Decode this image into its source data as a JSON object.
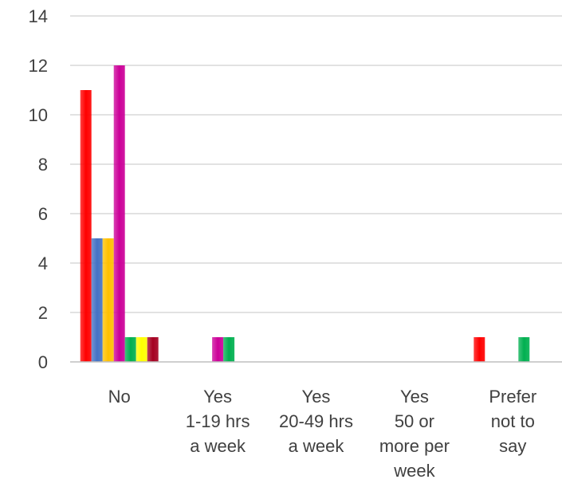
{
  "chart_data": {
    "type": "bar",
    "categories": [
      [
        "No"
      ],
      [
        "Yes",
        "1-19 hrs",
        "a week"
      ],
      [
        "Yes",
        "20-49 hrs",
        "a week"
      ],
      [
        "Yes",
        "50 or",
        "more per",
        "week"
      ],
      [
        "Prefer",
        "not to",
        "say"
      ]
    ],
    "ylim": [
      0,
      14
    ],
    "yticks": [
      0,
      2,
      4,
      6,
      8,
      10,
      12,
      14
    ],
    "grid": true,
    "legend": "none",
    "series": [
      {
        "color": "#ff0000",
        "values": [
          11,
          0,
          0,
          0,
          1
        ]
      },
      {
        "color": "#4472c4",
        "values": [
          5,
          0,
          0,
          0,
          0
        ]
      },
      {
        "color": "#ffc000",
        "values": [
          5,
          0,
          0,
          0,
          0
        ]
      },
      {
        "color": "#cc0099",
        "values": [
          12,
          1,
          0,
          0,
          0
        ]
      },
      {
        "color": "#00b050",
        "values": [
          1,
          1,
          0,
          0,
          1
        ]
      },
      {
        "color": "#ffff00",
        "values": [
          1,
          0,
          0,
          0,
          0
        ]
      },
      {
        "color": "#a50021",
        "values": [
          1,
          0,
          0,
          0,
          0
        ]
      }
    ]
  }
}
